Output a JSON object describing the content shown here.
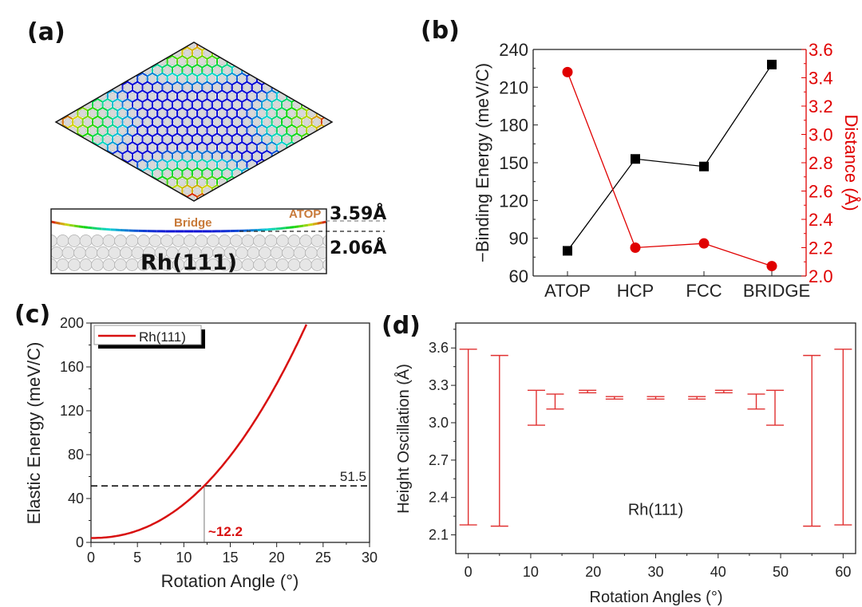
{
  "panels": {
    "a": {
      "letter": "(a)"
    },
    "b": {
      "letter": "(b)"
    },
    "c": {
      "letter": "(c)"
    },
    "d": {
      "letter": "(d)"
    }
  },
  "illustration": {
    "substrate_label": "Rh(111)",
    "site_bridge": "Bridge",
    "site_atop": "ATOP",
    "max_height": "3.59Å",
    "min_height": "2.06Å",
    "colors": {
      "high": "#e02020",
      "low": "#2020c0",
      "site_label": "#c87a3a",
      "atoms": "#d8d8d8"
    }
  },
  "chart_data": [
    {
      "panel": "b",
      "type": "line",
      "categories": [
        "ATOP",
        "HCP",
        "FCC",
        "BRIDGE"
      ],
      "series": [
        {
          "axis": "left",
          "marker": "square",
          "color": "#000000",
          "values": [
            80,
            153,
            147,
            228
          ]
        },
        {
          "axis": "right",
          "marker": "circle",
          "color": "#e00000",
          "values": [
            3.44,
            2.2,
            2.23,
            2.07
          ]
        }
      ],
      "ylabel": "−Binding Energy (meV/C)",
      "y2label": "Distance (Å)",
      "ylim": [
        60,
        240
      ],
      "yticks": [
        60,
        90,
        120,
        150,
        180,
        210,
        240
      ],
      "y2lim": [
        2.0,
        3.6
      ],
      "y2ticks": [
        "2.0",
        "2.2",
        "2.4",
        "2.6",
        "2.8",
        "3.0",
        "3.2",
        "3.4",
        "3.6"
      ],
      "grid": false
    },
    {
      "panel": "c",
      "type": "line",
      "series": [
        {
          "name": "Rh(111)",
          "color": "#d81010",
          "x": [
            0,
            2,
            4,
            6,
            8,
            10,
            12.2,
            14,
            16,
            18,
            20,
            22,
            23.3
          ],
          "y": [
            4,
            4.9,
            8.1,
            14.1,
            22.9,
            34.8,
            51.5,
            68.5,
            90.4,
            115.7,
            144.7,
            177.4,
            200
          ]
        }
      ],
      "xlabel": "Rotation Angle (°)",
      "ylabel": "Elastic Energy (meV/C)",
      "xlim": [
        0,
        30
      ],
      "ylim": [
        0,
        200
      ],
      "xticks": [
        0,
        5,
        10,
        15,
        20,
        25,
        30
      ],
      "yticks": [
        0,
        40,
        80,
        120,
        160,
        200
      ],
      "reference_line": {
        "y": 51.5,
        "label": "51.5"
      },
      "intersection": {
        "x": 12.2,
        "label": "~12.2",
        "color": "#d81010"
      },
      "legend": "top-left",
      "grid": false
    },
    {
      "panel": "d",
      "type": "errorbar",
      "color": "#e03030",
      "x": [
        0,
        5,
        10.9,
        13.9,
        19.1,
        23.4,
        30,
        36.6,
        40.9,
        46.1,
        49.1,
        55,
        60
      ],
      "low": [
        2.18,
        2.17,
        2.98,
        3.11,
        3.24,
        3.19,
        3.19,
        3.19,
        3.24,
        3.11,
        2.98,
        2.17,
        2.18
      ],
      "high": [
        3.59,
        3.54,
        3.26,
        3.23,
        3.26,
        3.21,
        3.21,
        3.21,
        3.26,
        3.23,
        3.26,
        3.54,
        3.59
      ],
      "xlabel": "Rotation Angles (°)",
      "ylabel": "Height Oscillation (Å)",
      "annotation": "Rh(111)",
      "xlim": [
        -2,
        62
      ],
      "ylim": [
        1.95,
        3.8
      ],
      "xticks": [
        0,
        10,
        20,
        30,
        40,
        50,
        60
      ],
      "yticks": [
        "2.1",
        "2.4",
        "2.7",
        "3.0",
        "3.3",
        "3.6"
      ],
      "grid": false
    }
  ]
}
